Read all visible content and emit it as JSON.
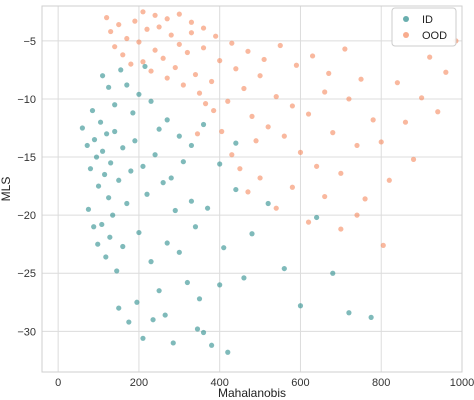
{
  "chart_data": {
    "type": "scatter",
    "title": "",
    "xlabel": "Mahalanobis",
    "ylabel": "MLS",
    "xlim": [
      -40,
      1000
    ],
    "ylim": [
      -33.5,
      -2
    ],
    "x_ticks": [
      0,
      200,
      400,
      600,
      800,
      1000
    ],
    "y_ticks": [
      -5,
      -10,
      -15,
      -20,
      -25,
      -30
    ],
    "grid": true,
    "legend": "top-right",
    "series": [
      {
        "name": "ID",
        "color": "#2a8c8c",
        "points": [
          [
            60,
            -12.5
          ],
          [
            72,
            -14.0
          ],
          [
            80,
            -16.0
          ],
          [
            85,
            -11.0
          ],
          [
            90,
            -13.5
          ],
          [
            95,
            -15.0
          ],
          [
            100,
            -17.5
          ],
          [
            105,
            -12.0
          ],
          [
            110,
            -14.5
          ],
          [
            115,
            -16.5
          ],
          [
            120,
            -13.0
          ],
          [
            125,
            -18.5
          ],
          [
            130,
            -15.5
          ],
          [
            135,
            -20.0
          ],
          [
            140,
            -12.8
          ],
          [
            150,
            -17.0
          ],
          [
            160,
            -14.2
          ],
          [
            170,
            -19.0
          ],
          [
            180,
            -16.2
          ],
          [
            190,
            -13.6
          ],
          [
            200,
            -21.5
          ],
          [
            210,
            -15.8
          ],
          [
            220,
            -18.2
          ],
          [
            230,
            -24.0
          ],
          [
            240,
            -14.8
          ],
          [
            250,
            -26.5
          ],
          [
            260,
            -17.2
          ],
          [
            270,
            -22.4
          ],
          [
            280,
            -16.8
          ],
          [
            290,
            -19.6
          ],
          [
            300,
            -23.2
          ],
          [
            310,
            -15.4
          ],
          [
            320,
            -25.8
          ],
          [
            330,
            -18.8
          ],
          [
            340,
            -21.0
          ],
          [
            350,
            -27.2
          ],
          [
            360,
            -30.1
          ],
          [
            370,
            -19.4
          ],
          [
            380,
            -31.2
          ],
          [
            400,
            -26.0
          ],
          [
            410,
            -22.8
          ],
          [
            420,
            -31.8
          ],
          [
            440,
            -17.8
          ],
          [
            460,
            -25.4
          ],
          [
            480,
            -21.6
          ],
          [
            520,
            -19.0
          ],
          [
            560,
            -24.6
          ],
          [
            600,
            -27.8
          ],
          [
            640,
            -20.2
          ],
          [
            680,
            -25.0
          ],
          [
            720,
            -28.4
          ],
          [
            775,
            -28.8
          ],
          [
            110,
            -8.0
          ],
          [
            125,
            -9.0
          ],
          [
            140,
            -10.5
          ],
          [
            155,
            -7.5
          ],
          [
            170,
            -8.8
          ],
          [
            185,
            -11.2
          ],
          [
            200,
            -9.6
          ],
          [
            215,
            -7.2
          ],
          [
            230,
            -10.2
          ],
          [
            250,
            -12.6
          ],
          [
            270,
            -11.8
          ],
          [
            300,
            -13.2
          ],
          [
            330,
            -14.0
          ],
          [
            360,
            -12.2
          ],
          [
            400,
            -15.6
          ],
          [
            440,
            -13.8
          ],
          [
            75,
            -19.5
          ],
          [
            88,
            -21.0
          ],
          [
            98,
            -22.5
          ],
          [
            108,
            -20.8
          ],
          [
            118,
            -23.6
          ],
          [
            128,
            -21.9
          ],
          [
            145,
            -24.8
          ],
          [
            160,
            -22.7
          ],
          [
            150,
            -28.0
          ],
          [
            175,
            -29.2
          ],
          [
            195,
            -27.5
          ],
          [
            210,
            -30.6
          ],
          [
            235,
            -29.0
          ],
          [
            265,
            -28.6
          ],
          [
            285,
            -31.0
          ],
          [
            345,
            -29.8
          ]
        ]
      },
      {
        "name": "OOD",
        "color": "#f5895e",
        "points": [
          [
            120,
            -3.0
          ],
          [
            130,
            -4.2
          ],
          [
            140,
            -5.5
          ],
          [
            150,
            -3.6
          ],
          [
            160,
            -6.2
          ],
          [
            170,
            -4.8
          ],
          [
            180,
            -7.0
          ],
          [
            190,
            -3.3
          ],
          [
            200,
            -5.1
          ],
          [
            210,
            -6.8
          ],
          [
            220,
            -4.0
          ],
          [
            230,
            -7.6
          ],
          [
            240,
            -5.8
          ],
          [
            250,
            -3.8
          ],
          [
            260,
            -6.5
          ],
          [
            270,
            -8.2
          ],
          [
            280,
            -4.5
          ],
          [
            290,
            -7.3
          ],
          [
            300,
            -5.3
          ],
          [
            310,
            -8.8
          ],
          [
            320,
            -6.0
          ],
          [
            330,
            -4.3
          ],
          [
            340,
            -7.9
          ],
          [
            350,
            -9.5
          ],
          [
            360,
            -5.6
          ],
          [
            380,
            -8.5
          ],
          [
            400,
            -6.7
          ],
          [
            420,
            -10.2
          ],
          [
            440,
            -7.4
          ],
          [
            460,
            -9.1
          ],
          [
            480,
            -11.5
          ],
          [
            500,
            -8.0
          ],
          [
            520,
            -12.4
          ],
          [
            540,
            -9.8
          ],
          [
            560,
            -13.2
          ],
          [
            580,
            -10.6
          ],
          [
            600,
            -14.6
          ],
          [
            620,
            -11.3
          ],
          [
            640,
            -15.8
          ],
          [
            660,
            -9.4
          ],
          [
            680,
            -12.9
          ],
          [
            700,
            -16.4
          ],
          [
            720,
            -10.0
          ],
          [
            740,
            -14.0
          ],
          [
            760,
            -18.6
          ],
          [
            780,
            -11.8
          ],
          [
            800,
            -13.7
          ],
          [
            820,
            -17.0
          ],
          [
            840,
            -8.6
          ],
          [
            860,
            -12.0
          ],
          [
            880,
            -15.2
          ],
          [
            900,
            -9.9
          ],
          [
            920,
            -6.4
          ],
          [
            940,
            -11.1
          ],
          [
            960,
            -7.7
          ],
          [
            985,
            -5.0
          ],
          [
            210,
            -2.5
          ],
          [
            240,
            -2.8
          ],
          [
            270,
            -3.1
          ],
          [
            300,
            -2.7
          ],
          [
            330,
            -3.4
          ],
          [
            360,
            -3.9
          ],
          [
            390,
            -4.6
          ],
          [
            430,
            -5.2
          ],
          [
            470,
            -5.9
          ],
          [
            510,
            -6.6
          ],
          [
            550,
            -5.4
          ],
          [
            590,
            -7.1
          ],
          [
            630,
            -6.3
          ],
          [
            670,
            -7.8
          ],
          [
            710,
            -5.7
          ],
          [
            750,
            -8.3
          ],
          [
            500,
            -16.8
          ],
          [
            540,
            -19.4
          ],
          [
            580,
            -17.6
          ],
          [
            620,
            -20.6
          ],
          [
            660,
            -18.4
          ],
          [
            700,
            -21.2
          ],
          [
            740,
            -20.0
          ],
          [
            805,
            -22.6
          ],
          [
            430,
            -14.8
          ],
          [
            450,
            -16.0
          ],
          [
            470,
            -18.0
          ],
          [
            490,
            -13.6
          ],
          [
            405,
            -12.8
          ],
          [
            385,
            -11.0
          ],
          [
            365,
            -10.4
          ],
          [
            345,
            -13.0
          ]
        ]
      }
    ]
  }
}
